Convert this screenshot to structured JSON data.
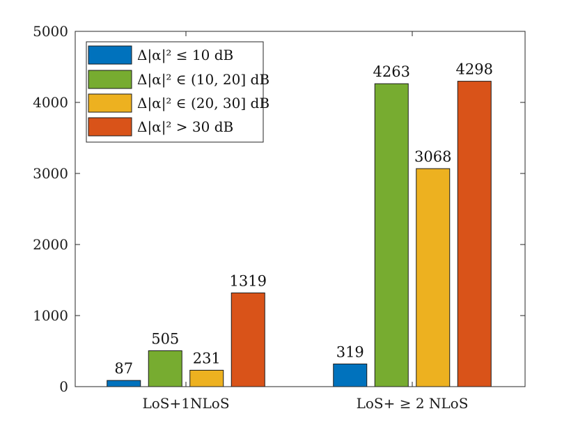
{
  "chart_data": {
    "type": "bar",
    "categories": [
      "LoS+1NLoS",
      "LoS+ ≥ 2 NLoS"
    ],
    "series": [
      {
        "name": "Δ|α|² ≤ 10 dB",
        "color": "#0072BD",
        "values": [
          87,
          319
        ]
      },
      {
        "name": "Δ|α|² ∈ (10, 20] dB",
        "color": "#77AC30",
        "values": [
          505,
          4263
        ]
      },
      {
        "name": "Δ|α|² ∈ (20, 30] dB",
        "color": "#EDB120",
        "values": [
          231,
          3068
        ]
      },
      {
        "name": "Δ|α|² > 30 dB",
        "color": "#D95319",
        "values": [
          1319,
          4298
        ]
      }
    ],
    "ylim": [
      0,
      5000
    ],
    "yticks": [
      0,
      1000,
      2000,
      3000,
      4000,
      5000
    ],
    "grid": false,
    "legend": "top-left",
    "data_labels": true
  }
}
